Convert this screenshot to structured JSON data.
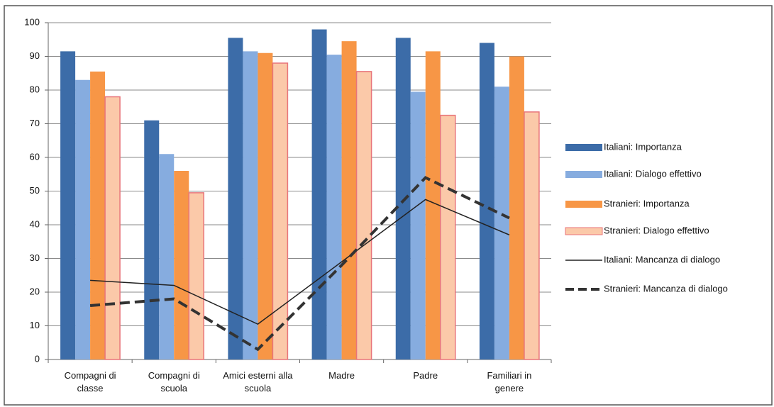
{
  "chart_data": {
    "type": "combo",
    "categories": [
      "Compagni di classe",
      "Compagni di scuola",
      "Amici esterni alla scuola",
      "Madre",
      "Padre",
      "Familiari in genere"
    ],
    "series": [
      {
        "name": "Italiani: Importanza",
        "type": "bar",
        "color": "#3c6ca8",
        "values": [
          91.5,
          71,
          95.5,
          98,
          95.5,
          94
        ]
      },
      {
        "name": "Italiani: Dialogo effettivo",
        "type": "bar",
        "color": "#86acdf",
        "values": [
          83,
          61,
          91.5,
          90.5,
          79.5,
          81
        ]
      },
      {
        "name": "Stranieri: Importanza",
        "type": "bar",
        "color": "#f79646",
        "values": [
          85.5,
          56,
          91,
          94.5,
          91.5,
          90
        ]
      },
      {
        "name": "Stranieri: Dialogo effettivo",
        "type": "bar",
        "color": "#fbc9a9",
        "stroke": "#e8747a",
        "values": [
          78,
          49.5,
          88,
          85.5,
          72.5,
          73.5
        ]
      },
      {
        "name": "Italiani: Mancanza di dialogo",
        "type": "line",
        "color": "#222222",
        "dashed": false,
        "values": [
          23.5,
          22,
          10.5,
          29,
          47.5,
          37
        ]
      },
      {
        "name": "Stranieri: Mancanza di dialogo",
        "type": "line",
        "color": "#333333",
        "dashed": true,
        "values": [
          16,
          18,
          3,
          28,
          54,
          42
        ]
      }
    ],
    "ylim": [
      0,
      100
    ],
    "yticks": [
      0,
      10,
      20,
      30,
      40,
      50,
      60,
      70,
      80,
      90,
      100
    ],
    "grid": true,
    "legend": "right"
  }
}
